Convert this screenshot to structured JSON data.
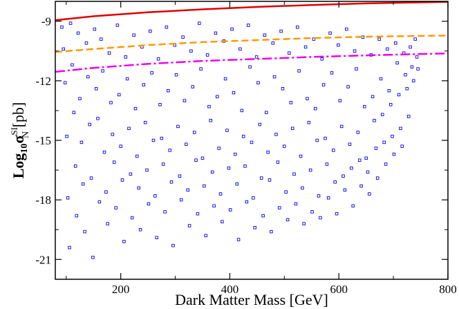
{
  "chart_data": {
    "type": "scatter",
    "xlabel": "Dark Matter Mass [GeV]",
    "ylabel": {
      "prefix": "Log",
      "base": "10",
      "symbol": "σ",
      "superscript": "SI",
      "subscript": "N",
      "suffix": " [pb]"
    },
    "xlim": [
      80,
      800
    ],
    "ylim": [
      -22,
      -8
    ],
    "x_ticks": [
      200,
      400,
      600,
      800
    ],
    "x_tick_labels": [
      "200",
      "400",
      "600",
      "800"
    ],
    "y_ticks": [
      -9,
      -12,
      -15,
      -18,
      -21
    ],
    "y_tick_labels": [
      "-9",
      "-12",
      "-15",
      "-18",
      "-21"
    ],
    "grid": false,
    "colors": {
      "points": "#0000ee",
      "limit_solid": "#dd0000",
      "limit_dashed": "#ff9900",
      "limit_dashdot": "#ee00ee"
    },
    "scatter": {
      "marker": "open-square",
      "x_range": [
        90,
        745
      ],
      "upper_envelope_y": -8.8,
      "lower_envelope": [
        [
          90,
          -20.6
        ],
        [
          150,
          -21.2
        ],
        [
          300,
          -20.5
        ],
        [
          400,
          -20.3
        ],
        [
          500,
          -19.8
        ],
        [
          600,
          -19.2
        ],
        [
          700,
          -16.2
        ],
        [
          745,
          -15.3
        ]
      ],
      "density_note_removed": true,
      "points": [
        [
          92,
          -9.3
        ],
        [
          95,
          -10.4
        ],
        [
          98,
          -12.1
        ],
        [
          101,
          -14.8
        ],
        [
          103,
          -17.9
        ],
        [
          106,
          -20.4
        ],
        [
          108,
          -9.1
        ],
        [
          111,
          -11.2
        ],
        [
          114,
          -13.6
        ],
        [
          117,
          -16.3
        ],
        [
          119,
          -18.8
        ],
        [
          122,
          -9.6
        ],
        [
          125,
          -12.9
        ],
        [
          128,
          -15.1
        ],
        [
          131,
          -17.2
        ],
        [
          134,
          -19.6
        ],
        [
          137,
          -10.1
        ],
        [
          140,
          -11.8
        ],
        [
          143,
          -14.2
        ],
        [
          146,
          -16.9
        ],
        [
          149,
          -20.9
        ],
        [
          152,
          -9.4
        ],
        [
          155,
          -12.4
        ],
        [
          158,
          -13.9
        ],
        [
          161,
          -18.1
        ],
        [
          164,
          -9.9
        ],
        [
          167,
          -11.5
        ],
        [
          170,
          -15.6
        ],
        [
          173,
          -17.6
        ],
        [
          176,
          -19.2
        ],
        [
          179,
          -10.6
        ],
        [
          182,
          -13.1
        ],
        [
          185,
          -14.7
        ],
        [
          188,
          -16.1
        ],
        [
          191,
          -18.4
        ],
        [
          194,
          -9.2
        ],
        [
          197,
          -12.7
        ],
        [
          200,
          -15.3
        ],
        [
          203,
          -17.0
        ],
        [
          206,
          -20.1
        ],
        [
          209,
          -10.8
        ],
        [
          212,
          -11.9
        ],
        [
          215,
          -14.4
        ],
        [
          218,
          -16.7
        ],
        [
          221,
          -18.9
        ],
        [
          224,
          -9.7
        ],
        [
          227,
          -13.4
        ],
        [
          230,
          -15.8
        ],
        [
          233,
          -17.4
        ],
        [
          236,
          -19.5
        ],
        [
          239,
          -10.3
        ],
        [
          242,
          -12.2
        ],
        [
          245,
          -14.1
        ],
        [
          248,
          -16.5
        ],
        [
          251,
          -18.2
        ],
        [
          254,
          -9.5
        ],
        [
          257,
          -11.6
        ],
        [
          260,
          -15.0
        ],
        [
          263,
          -17.8
        ],
        [
          266,
          -19.9
        ],
        [
          269,
          -10.9
        ],
        [
          272,
          -13.2
        ],
        [
          275,
          -14.9
        ],
        [
          278,
          -16.2
        ],
        [
          281,
          -18.6
        ],
        [
          284,
          -9.3
        ],
        [
          287,
          -12.5
        ],
        [
          290,
          -15.5
        ],
        [
          293,
          -17.1
        ],
        [
          296,
          -20.3
        ],
        [
          299,
          -10.2
        ],
        [
          302,
          -11.7
        ],
        [
          305,
          -14.3
        ],
        [
          308,
          -16.8
        ],
        [
          311,
          -18.0
        ],
        [
          314,
          -9.8
        ],
        [
          317,
          -13.0
        ],
        [
          320,
          -15.2
        ],
        [
          323,
          -17.5
        ],
        [
          326,
          -19.3
        ],
        [
          329,
          -10.5
        ],
        [
          332,
          -12.3
        ],
        [
          335,
          -14.6
        ],
        [
          338,
          -16.0
        ],
        [
          341,
          -18.7
        ],
        [
          344,
          -9.1
        ],
        [
          347,
          -11.4
        ],
        [
          350,
          -15.9
        ],
        [
          353,
          -17.3
        ],
        [
          356,
          -19.8
        ],
        [
          359,
          -10.7
        ],
        [
          362,
          -13.3
        ],
        [
          365,
          -14.0
        ],
        [
          368,
          -16.6
        ],
        [
          371,
          -18.3
        ],
        [
          374,
          -9.6
        ],
        [
          377,
          -12.8
        ],
        [
          380,
          -15.4
        ],
        [
          383,
          -17.7
        ],
        [
          386,
          -19.1
        ],
        [
          389,
          -10.0
        ],
        [
          392,
          -11.9
        ],
        [
          395,
          -14.5
        ],
        [
          398,
          -16.4
        ],
        [
          401,
          -18.5
        ],
        [
          404,
          -9.4
        ],
        [
          407,
          -12.6
        ],
        [
          410,
          -15.7
        ],
        [
          413,
          -17.2
        ],
        [
          416,
          -20.0
        ],
        [
          419,
          -10.4
        ],
        [
          422,
          -13.5
        ],
        [
          425,
          -14.8
        ],
        [
          428,
          -16.3
        ],
        [
          431,
          -18.1
        ],
        [
          434,
          -9.2
        ],
        [
          437,
          -11.3
        ],
        [
          440,
          -15.1
        ],
        [
          443,
          -17.9
        ],
        [
          446,
          -19.4
        ],
        [
          449,
          -10.8
        ],
        [
          452,
          -12.1
        ],
        [
          455,
          -14.2
        ],
        [
          458,
          -16.9
        ],
        [
          461,
          -18.8
        ],
        [
          464,
          -9.7
        ],
        [
          467,
          -13.6
        ],
        [
          470,
          -15.6
        ],
        [
          473,
          -17.0
        ],
        [
          476,
          -19.6
        ],
        [
          479,
          -10.1
        ],
        [
          482,
          -11.8
        ],
        [
          485,
          -14.7
        ],
        [
          488,
          -16.1
        ],
        [
          491,
          -18.4
        ],
        [
          494,
          -9.5
        ],
        [
          497,
          -12.4
        ],
        [
          500,
          -15.3
        ],
        [
          503,
          -17.6
        ],
        [
          506,
          -19.0
        ],
        [
          509,
          -10.6
        ],
        [
          512,
          -13.1
        ],
        [
          515,
          -14.4
        ],
        [
          518,
          -16.7
        ],
        [
          521,
          -18.2
        ],
        [
          524,
          -9.3
        ],
        [
          527,
          -11.5
        ],
        [
          530,
          -15.8
        ],
        [
          533,
          -17.4
        ],
        [
          536,
          -19.2
        ],
        [
          539,
          -10.3
        ],
        [
          542,
          -12.9
        ],
        [
          545,
          -14.1
        ],
        [
          548,
          -16.5
        ],
        [
          551,
          -18.6
        ],
        [
          554,
          -9.9
        ],
        [
          557,
          -13.4
        ],
        [
          560,
          -15.0
        ],
        [
          563,
          -17.8
        ],
        [
          566,
          -18.9
        ],
        [
          569,
          -10.9
        ],
        [
          572,
          -12.2
        ],
        [
          575,
          -14.9
        ],
        [
          578,
          -16.2
        ],
        [
          581,
          -17.9
        ],
        [
          584,
          -9.6
        ],
        [
          587,
          -11.6
        ],
        [
          590,
          -15.5
        ],
        [
          593,
          -17.1
        ],
        [
          596,
          -18.7
        ],
        [
          599,
          -10.2
        ],
        [
          602,
          -13.0
        ],
        [
          605,
          -14.3
        ],
        [
          608,
          -16.8
        ],
        [
          611,
          -17.5
        ],
        [
          614,
          -9.4
        ],
        [
          617,
          -12.3
        ],
        [
          620,
          -15.2
        ],
        [
          623,
          -16.4
        ],
        [
          626,
          -18.3
        ],
        [
          629,
          -10.5
        ],
        [
          632,
          -11.4
        ],
        [
          635,
          -14.6
        ],
        [
          638,
          -16.0
        ],
        [
          641,
          -17.3
        ],
        [
          644,
          -9.8
        ],
        [
          647,
          -13.3
        ],
        [
          650,
          -15.9
        ],
        [
          653,
          -16.6
        ],
        [
          656,
          -17.7
        ],
        [
          659,
          -10.7
        ],
        [
          662,
          -12.8
        ],
        [
          665,
          -14.0
        ],
        [
          668,
          -15.4
        ],
        [
          671,
          -16.9
        ],
        [
          674,
          -9.9
        ],
        [
          677,
          -11.9
        ],
        [
          680,
          -13.7
        ],
        [
          683,
          -15.1
        ],
        [
          686,
          -16.2
        ],
        [
          689,
          -10.4
        ],
        [
          692,
          -12.5
        ],
        [
          695,
          -13.2
        ],
        [
          698,
          -14.8
        ],
        [
          701,
          -15.7
        ],
        [
          704,
          -10.1
        ],
        [
          707,
          -11.1
        ],
        [
          710,
          -12.7
        ],
        [
          713,
          -14.4
        ],
        [
          716,
          -15.3
        ],
        [
          719,
          -10.6
        ],
        [
          722,
          -11.7
        ],
        [
          725,
          -12.4
        ],
        [
          728,
          -13.8
        ],
        [
          731,
          -10.3
        ],
        [
          734,
          -11.3
        ],
        [
          737,
          -12.0
        ],
        [
          740,
          -9.9
        ],
        [
          743,
          -10.8
        ],
        [
          745,
          -11.4
        ]
      ]
    },
    "lines": [
      {
        "style": "solid",
        "points": [
          [
            80,
            -8.95
          ],
          [
            150,
            -8.75
          ],
          [
            250,
            -8.55
          ],
          [
            350,
            -8.4
          ],
          [
            450,
            -8.28
          ],
          [
            550,
            -8.18
          ],
          [
            650,
            -8.1
          ],
          [
            800,
            -8.02
          ]
        ]
      },
      {
        "style": "dashed",
        "points": [
          [
            80,
            -10.55
          ],
          [
            150,
            -10.4
          ],
          [
            250,
            -10.2
          ],
          [
            350,
            -10.05
          ],
          [
            450,
            -9.95
          ],
          [
            550,
            -9.85
          ],
          [
            650,
            -9.78
          ],
          [
            800,
            -9.72
          ]
        ]
      },
      {
        "style": "dashdot",
        "points": [
          [
            80,
            -11.55
          ],
          [
            150,
            -11.35
          ],
          [
            250,
            -11.15
          ],
          [
            350,
            -11.0
          ],
          [
            450,
            -10.9
          ],
          [
            550,
            -10.8
          ],
          [
            650,
            -10.72
          ],
          [
            800,
            -10.62
          ]
        ]
      }
    ]
  }
}
